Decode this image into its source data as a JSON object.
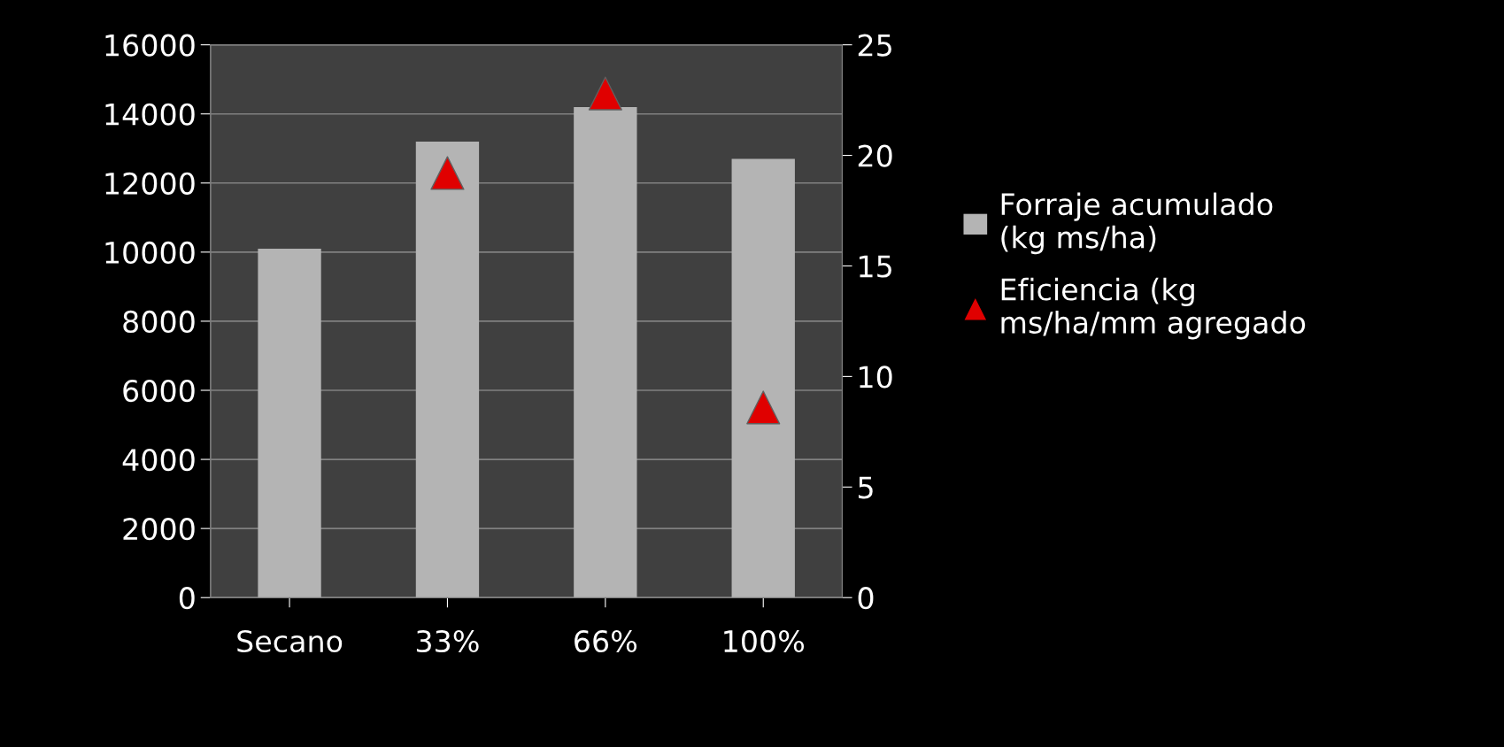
{
  "chart_data": {
    "type": "bar",
    "categories": [
      "Secano",
      "33%",
      "66%",
      "100%"
    ],
    "series": [
      {
        "name": "Forraje acumulado\n(kg ms/ha)",
        "color": "#b4b4b4",
        "values": [
          10100,
          13200,
          14200,
          12700
        ]
      },
      {
        "name": "Eficiencia (kg\nms/ha/mm agregado",
        "type": "scatter",
        "axis": "y2",
        "color": "#e00000",
        "marker": "triangle",
        "values": [
          null,
          19.2,
          22.8,
          8.6
        ]
      }
    ],
    "ylim": [
      0,
      16000
    ],
    "yticks": [
      0,
      2000,
      4000,
      6000,
      8000,
      10000,
      12000,
      14000,
      16000
    ],
    "y2lim": [
      0,
      25
    ],
    "y2ticks": [
      0,
      5,
      10,
      15,
      20,
      25
    ],
    "grid": "y",
    "legend": "right"
  }
}
